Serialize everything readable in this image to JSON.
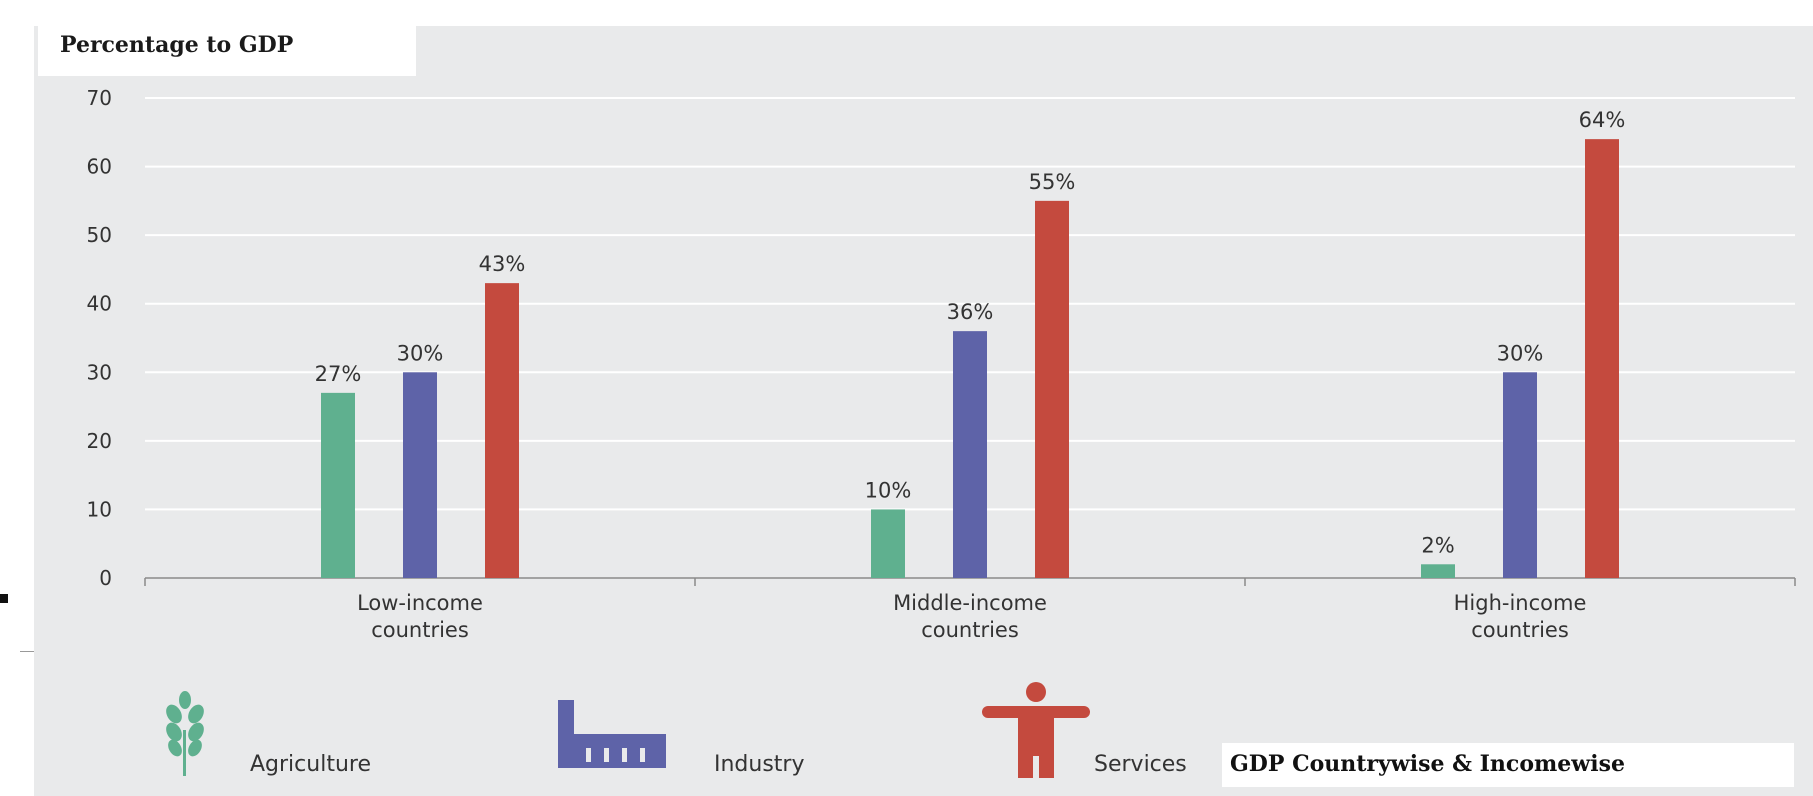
{
  "chart_data": {
    "type": "bar",
    "title": "Percentage to GDP",
    "xlabel": "",
    "ylabel": "",
    "ylim": [
      0,
      70
    ],
    "yticks": [
      "0",
      "10",
      "20",
      "30",
      "40",
      "50",
      "60",
      "70"
    ],
    "grid": true,
    "categories": [
      [
        "Low-income",
        "countries"
      ],
      [
        "Middle-income",
        "countries"
      ],
      [
        "High-income",
        "countries"
      ]
    ],
    "series": [
      {
        "name": "Agriculture",
        "color": "#5fb08f",
        "values": [
          27,
          10,
          2
        ],
        "labels": [
          "27%",
          "10%",
          "2%"
        ]
      },
      {
        "name": "Industry",
        "color": "#5e63a8",
        "values": [
          30,
          36,
          30
        ],
        "labels": [
          "30%",
          "36%",
          "30%"
        ]
      },
      {
        "name": "Services",
        "color": "#c44a3e",
        "values": [
          43,
          55,
          64
        ],
        "labels": [
          "43%",
          "55%",
          "64%"
        ]
      }
    ],
    "legend": {
      "position": "bottom",
      "items": [
        {
          "label": "Agriculture",
          "icon": "wheat-icon"
        },
        {
          "label": "Industry",
          "icon": "factory-icon"
        },
        {
          "label": "Services",
          "icon": "person-icon"
        }
      ]
    }
  },
  "caption": "GDP Countrywise & Incomewise"
}
